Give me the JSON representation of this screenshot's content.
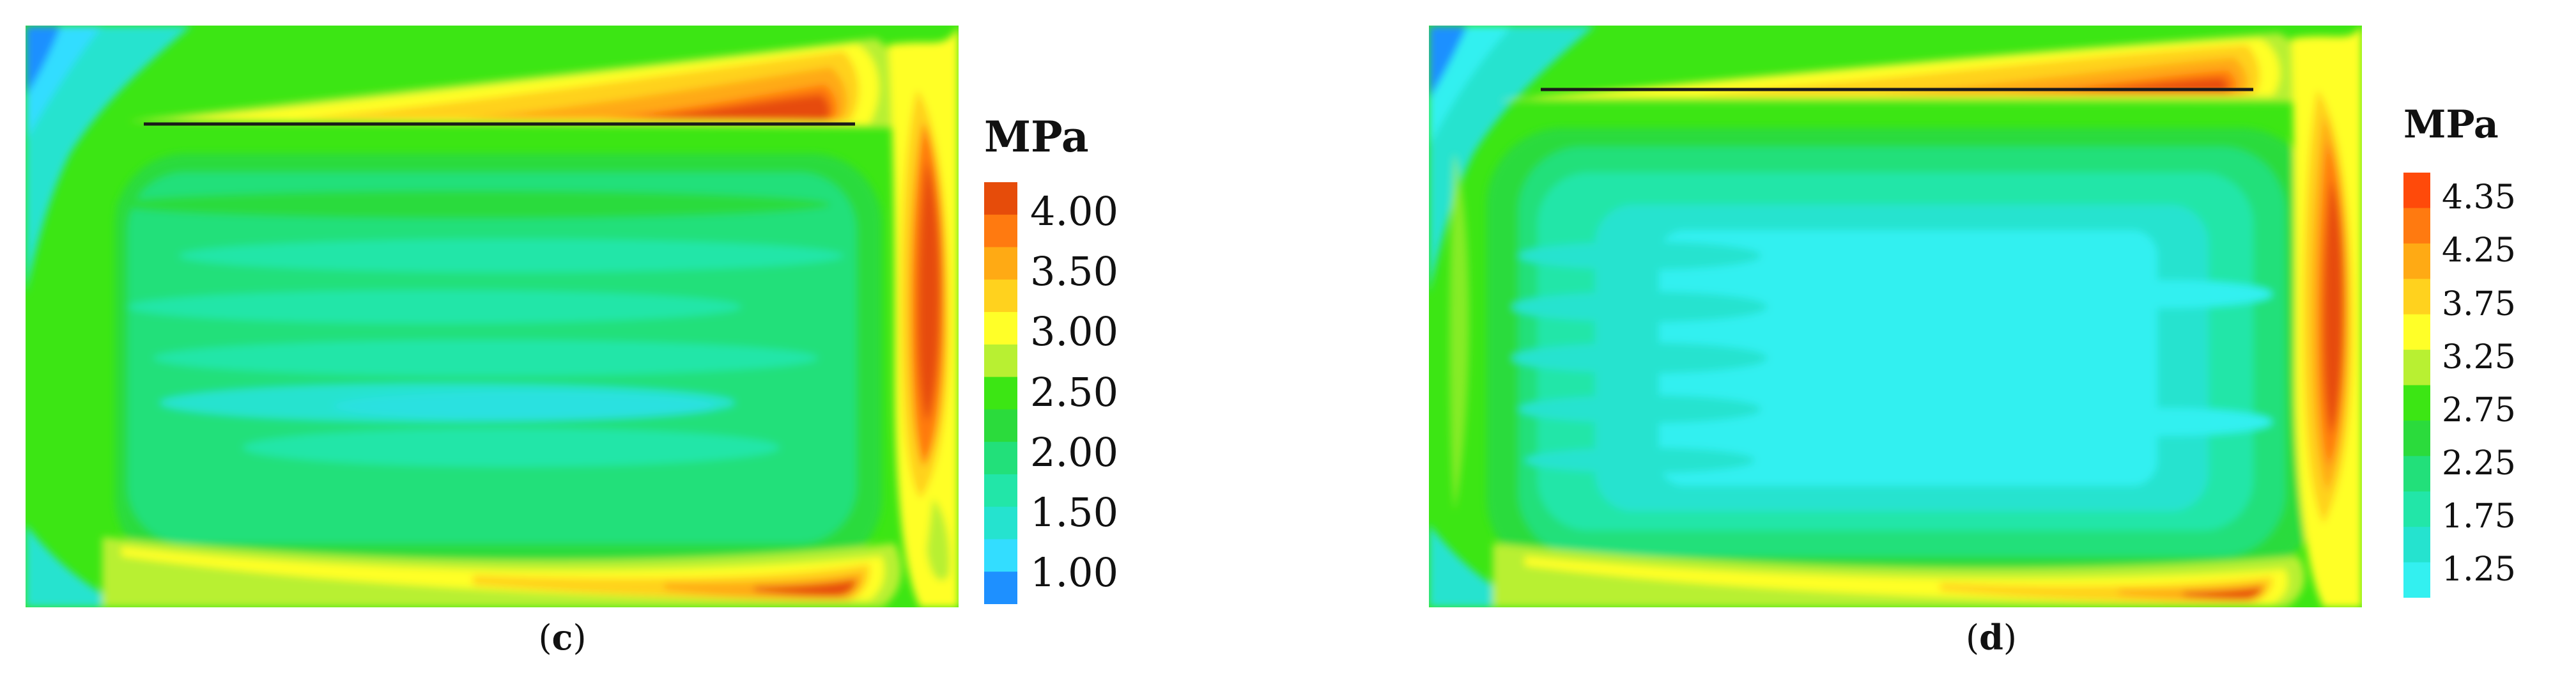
{
  "panels": [
    {
      "label_open": "(",
      "label_letter": "c",
      "label_close": ")",
      "unit": "MPa",
      "colorbar_colors": [
        "#e64c0a",
        "#ff7a10",
        "#ffaa14",
        "#ffd21e",
        "#ffff28",
        "#b8f032",
        "#3ce614",
        "#2bdb3c",
        "#22e07a",
        "#22e6a8",
        "#25e3cf",
        "#33ddff",
        "#1e90ff"
      ],
      "tick_labels": [
        "4.00",
        "3.50",
        "3.00",
        "2.50",
        "2.00",
        "1.50",
        "1.00"
      ]
    },
    {
      "label_open": "(",
      "label_letter": "d",
      "label_close": ")",
      "unit": "MPa",
      "colorbar_colors": [
        "#ff4a0a",
        "#ff7a10",
        "#ffaa14",
        "#ffd21e",
        "#ffff28",
        "#b8f032",
        "#3ce614",
        "#2bdb3c",
        "#22e07a",
        "#22e6a8",
        "#25e3cf",
        "#33f0f0"
      ],
      "tick_labels": [
        "4.35",
        "4.25",
        "3.75",
        "3.25",
        "2.75",
        "2.25",
        "1.75",
        "1.25"
      ]
    }
  ]
}
